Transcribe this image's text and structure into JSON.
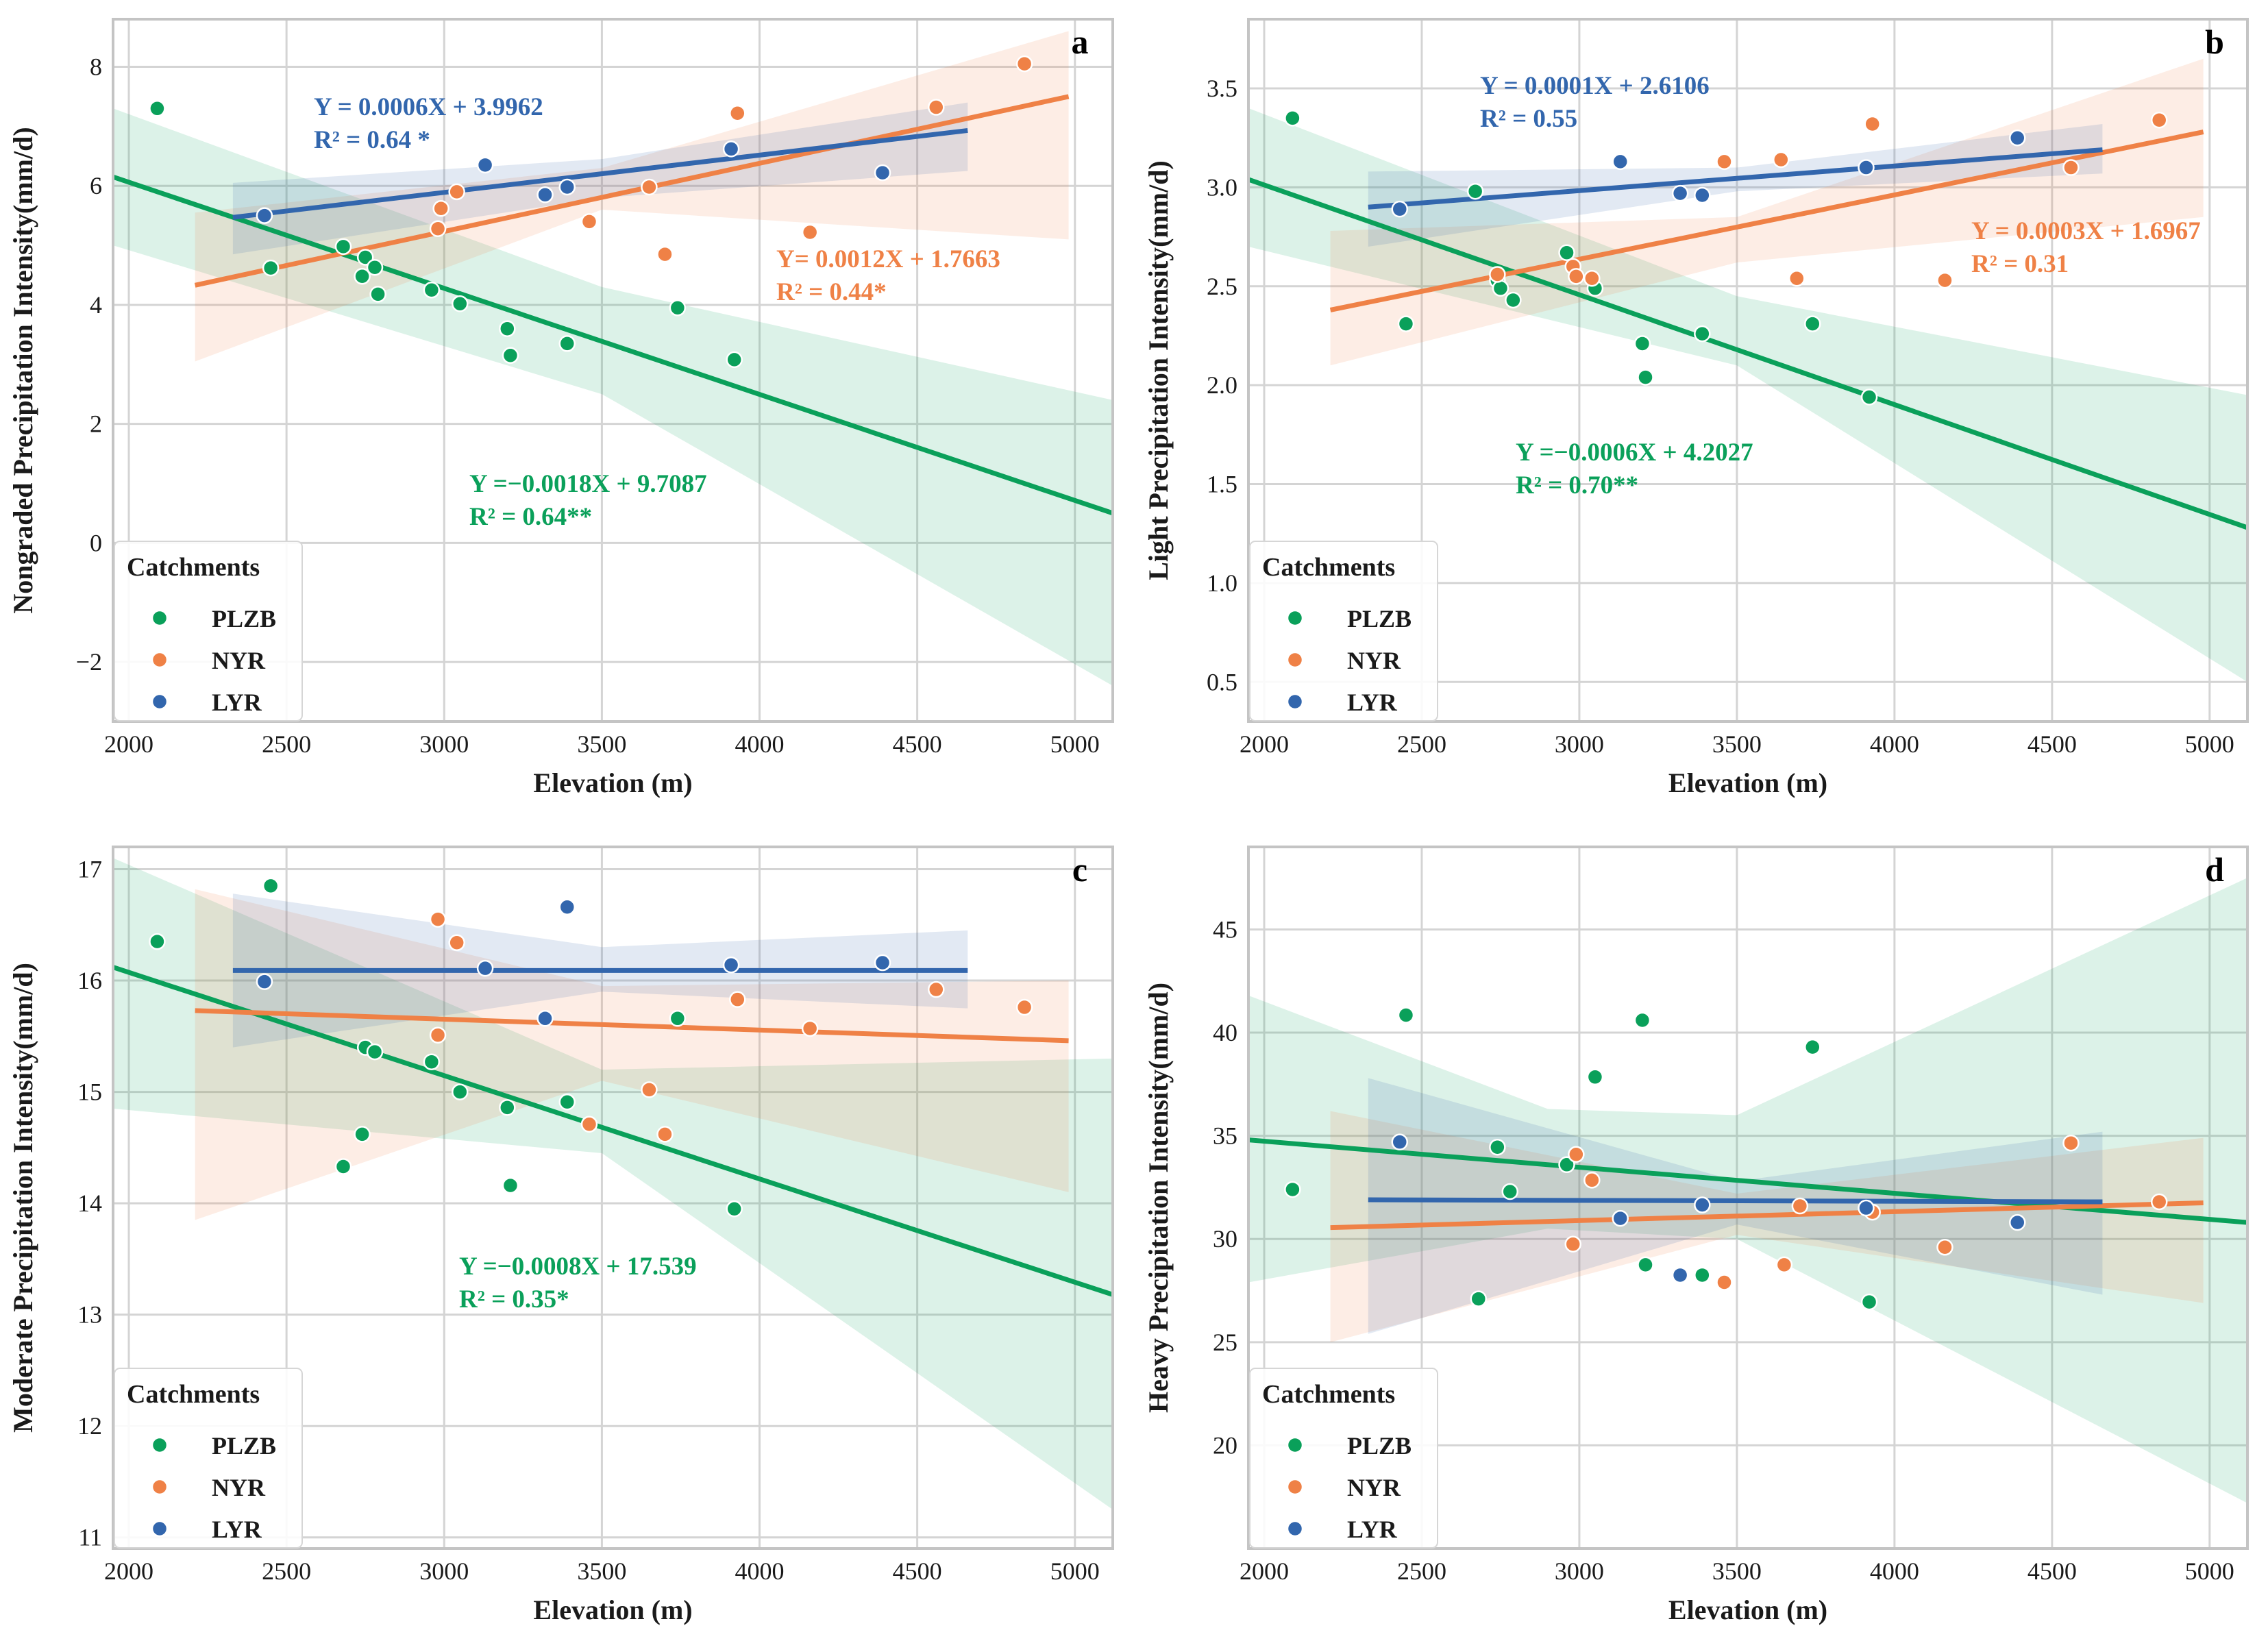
{
  "colors": {
    "PLZB": "#0aa05a",
    "NYR": "#ef8146",
    "LYR": "#3266ad",
    "grid": "#d4d4d4",
    "frame": "#c4c4c4"
  },
  "shared": {
    "xlabel": "Elevation (m)",
    "legend_title": "Catchments",
    "legend_entries": [
      "PLZB",
      "NYR",
      "LYR"
    ]
  },
  "chart_data": [
    {
      "type": "scatter",
      "panel": "a",
      "ylabel": "Nongraded Precipitation Intensity(mm/d)",
      "xlabel": "Elevation (m)",
      "xlim": [
        1950,
        5120
      ],
      "ylim": [
        -3,
        8.8
      ],
      "xticks": [
        2000,
        2500,
        3000,
        3500,
        4000,
        4500,
        5000
      ],
      "yticks": [
        -2,
        0,
        2,
        4,
        6,
        8
      ],
      "grid": true,
      "legend": "bottom-left",
      "series": [
        {
          "name": "PLZB",
          "points": [
            [
              2090,
              7.3
            ],
            [
              2450,
              4.62
            ],
            [
              2680,
              4.98
            ],
            [
              2740,
              4.48
            ],
            [
              2750,
              4.8
            ],
            [
              2780,
              4.63
            ],
            [
              2790,
              4.18
            ],
            [
              2960,
              4.25
            ],
            [
              3050,
              4.02
            ],
            [
              3200,
              3.6
            ],
            [
              3210,
              3.15
            ],
            [
              3390,
              3.35
            ],
            [
              3740,
              3.95
            ],
            [
              3920,
              3.08
            ]
          ],
          "fit": {
            "x0": 1950,
            "y0": 6.15,
            "x1": 5120,
            "y1": 0.5
          },
          "band": {
            "x": [
              1950,
              3500,
              5120
            ],
            "upper": [
              7.3,
              4.3,
              2.4
            ],
            "lower": [
              5.0,
              2.5,
              -2.4
            ]
          },
          "equation": "Y =−0.0018X + 9.7087",
          "r2": "R² = 0.64**"
        },
        {
          "name": "NYR",
          "points": [
            [
              2980,
              5.28
            ],
            [
              2990,
              5.62
            ],
            [
              3040,
              5.9
            ],
            [
              3460,
              5.4
            ],
            [
              3650,
              5.98
            ],
            [
              3700,
              4.85
            ],
            [
              3930,
              7.22
            ],
            [
              4160,
              5.22
            ],
            [
              4560,
              7.32
            ],
            [
              4840,
              8.05
            ]
          ],
          "fit": {
            "x0": 2210,
            "y0": 4.33,
            "x1": 4980,
            "y1": 7.5
          },
          "band": {
            "x": [
              2210,
              3500,
              4980
            ],
            "upper": [
              5.55,
              6.3,
              8.6
            ],
            "lower": [
              3.05,
              5.6,
              5.1
            ]
          },
          "equation": "Y= 0.0012X + 1.7663",
          "r2": "R² = 0.44*"
        },
        {
          "name": "LYR",
          "points": [
            [
              2430,
              5.5
            ],
            [
              3130,
              6.35
            ],
            [
              3320,
              5.85
            ],
            [
              3390,
              5.98
            ],
            [
              3910,
              6.62
            ],
            [
              4390,
              6.22
            ]
          ],
          "fit": {
            "x0": 2330,
            "y0": 5.47,
            "x1": 4660,
            "y1": 6.93
          },
          "band": {
            "x": [
              2330,
              3500,
              4660
            ],
            "upper": [
              6.05,
              6.45,
              7.4
            ],
            "lower": [
              4.85,
              5.8,
              6.25
            ]
          },
          "equation": "Y = 0.0006X + 3.9962",
          "r2": "R² = 0.64 *"
        }
      ]
    },
    {
      "type": "scatter",
      "panel": "b",
      "ylabel": "Light Precipitation Intensity(mm/d)",
      "xlabel": "Elevation (m)",
      "xlim": [
        1950,
        5120
      ],
      "ylim": [
        0.3,
        3.85
      ],
      "xticks": [
        2000,
        2500,
        3000,
        3500,
        4000,
        4500,
        5000
      ],
      "yticks": [
        0.5,
        1.0,
        1.5,
        2.0,
        2.5,
        3.0,
        3.5
      ],
      "grid": true,
      "legend": "bottom-left",
      "series": [
        {
          "name": "PLZB",
          "points": [
            [
              2090,
              3.35
            ],
            [
              2450,
              2.31
            ],
            [
              2670,
              2.98
            ],
            [
              2740,
              2.53
            ],
            [
              2750,
              2.49
            ],
            [
              2790,
              2.43
            ],
            [
              2960,
              2.67
            ],
            [
              3050,
              2.49
            ],
            [
              3200,
              2.21
            ],
            [
              3210,
              2.04
            ],
            [
              3390,
              2.26
            ],
            [
              3740,
              2.31
            ],
            [
              3920,
              1.94
            ]
          ],
          "fit": {
            "x0": 1950,
            "y0": 3.04,
            "x1": 5120,
            "y1": 1.28
          },
          "band": {
            "x": [
              1950,
              3500,
              5120
            ],
            "upper": [
              3.4,
              2.45,
              1.95
            ],
            "lower": [
              2.7,
              2.1,
              0.5
            ]
          },
          "equation": "Y =−0.0006X + 4.2027",
          "r2": "R² = 0.70**"
        },
        {
          "name": "NYR",
          "points": [
            [
              2740,
              2.56
            ],
            [
              2980,
              2.6
            ],
            [
              2990,
              2.55
            ],
            [
              3040,
              2.54
            ],
            [
              3460,
              3.13
            ],
            [
              3640,
              3.14
            ],
            [
              3690,
              2.54
            ],
            [
              3930,
              3.32
            ],
            [
              4160,
              2.53
            ],
            [
              4560,
              3.1
            ],
            [
              4840,
              3.34
            ]
          ],
          "fit": {
            "x0": 2210,
            "y0": 2.38,
            "x1": 4980,
            "y1": 3.28
          },
          "band": {
            "x": [
              2210,
              3500,
              4980
            ],
            "upper": [
              2.78,
              2.85,
              3.65
            ],
            "lower": [
              2.1,
              2.62,
              2.85
            ]
          },
          "equation": "Y = 0.0003X + 1.6967",
          "r2": "R² = 0.31"
        },
        {
          "name": "LYR",
          "points": [
            [
              2430,
              2.89
            ],
            [
              3130,
              3.13
            ],
            [
              3320,
              2.97
            ],
            [
              3390,
              2.96
            ],
            [
              3910,
              3.1
            ],
            [
              4390,
              3.25
            ]
          ],
          "fit": {
            "x0": 2330,
            "y0": 2.9,
            "x1": 4660,
            "y1": 3.19
          },
          "band": {
            "x": [
              2330,
              3500,
              4660
            ],
            "upper": [
              3.08,
              3.1,
              3.32
            ],
            "lower": [
              2.7,
              2.98,
              3.07
            ]
          },
          "equation": "Y = 0.0001X + 2.6106",
          "r2": "R² = 0.55"
        }
      ]
    },
    {
      "type": "scatter",
      "panel": "c",
      "ylabel": "Moderate Precipitation Intensity(mm/d)",
      "xlabel": "Elevation (m)",
      "xlim": [
        1950,
        5120
      ],
      "ylim": [
        10.9,
        17.2
      ],
      "xticks": [
        2000,
        2500,
        3000,
        3500,
        4000,
        4500,
        5000
      ],
      "yticks": [
        11,
        12,
        13,
        14,
        15,
        16,
        17
      ],
      "grid": true,
      "legend": "bottom-left",
      "series": [
        {
          "name": "PLZB",
          "points": [
            [
              2090,
              16.35
            ],
            [
              2450,
              16.85
            ],
            [
              2680,
              14.33
            ],
            [
              2740,
              14.62
            ],
            [
              2750,
              15.4
            ],
            [
              2780,
              15.36
            ],
            [
              2960,
              15.27
            ],
            [
              3050,
              15.0
            ],
            [
              3200,
              14.86
            ],
            [
              3210,
              14.16
            ],
            [
              3390,
              14.91
            ],
            [
              3740,
              15.66
            ],
            [
              3920,
              13.95
            ]
          ],
          "fit": {
            "x0": 1950,
            "y0": 16.12,
            "x1": 5120,
            "y1": 13.18
          },
          "band": {
            "x": [
              1950,
              3500,
              5120
            ],
            "upper": [
              17.1,
              15.2,
              15.3
            ],
            "lower": [
              14.85,
              14.45,
              11.25
            ]
          },
          "equation": "Y =−0.0008X + 17.539",
          "r2": "R² = 0.35*"
        },
        {
          "name": "NYR",
          "points": [
            [
              2980,
              16.55
            ],
            [
              2980,
              15.51
            ],
            [
              3040,
              16.34
            ],
            [
              3460,
              14.71
            ],
            [
              3650,
              15.02
            ],
            [
              3700,
              14.62
            ],
            [
              3930,
              15.83
            ],
            [
              4160,
              15.57
            ],
            [
              4560,
              15.92
            ],
            [
              4840,
              15.76
            ]
          ],
          "fit": {
            "x0": 2210,
            "y0": 15.73,
            "x1": 4980,
            "y1": 15.46
          },
          "band": {
            "x": [
              2210,
              3500,
              4980
            ],
            "upper": [
              16.82,
              15.95,
              16.0
            ],
            "lower": [
              13.85,
              15.1,
              14.1
            ]
          },
          "equation": "",
          "r2": ""
        },
        {
          "name": "LYR",
          "points": [
            [
              2430,
              15.99
            ],
            [
              3130,
              16.11
            ],
            [
              3320,
              15.66
            ],
            [
              3390,
              16.66
            ],
            [
              3910,
              16.14
            ],
            [
              4390,
              16.16
            ]
          ],
          "fit": {
            "x0": 2330,
            "y0": 16.09,
            "x1": 4660,
            "y1": 16.09
          },
          "band": {
            "x": [
              2330,
              3500,
              4660
            ],
            "upper": [
              16.78,
              16.3,
              16.45
            ],
            "lower": [
              15.4,
              15.9,
              15.75
            ]
          },
          "equation": "",
          "r2": ""
        }
      ]
    },
    {
      "type": "scatter",
      "panel": "d",
      "ylabel": "Heavy Precipitation Intensity(mm/d)",
      "xlabel": "Elevation (m)",
      "xlim": [
        1950,
        5120
      ],
      "ylim": [
        15,
        49
      ],
      "xticks": [
        2000,
        2500,
        3000,
        3500,
        4000,
        4500,
        5000
      ],
      "yticks": [
        20,
        25,
        30,
        35,
        40,
        45
      ],
      "grid": true,
      "legend": "bottom-left",
      "series": [
        {
          "name": "PLZB",
          "points": [
            [
              2090,
              32.4
            ],
            [
              2450,
              40.85
            ],
            [
              2680,
              27.1
            ],
            [
              2740,
              34.45
            ],
            [
              2780,
              32.3
            ],
            [
              2960,
              33.6
            ],
            [
              3050,
              37.85
            ],
            [
              3200,
              40.6
            ],
            [
              3210,
              28.75
            ],
            [
              3390,
              28.25
            ],
            [
              3740,
              39.3
            ],
            [
              3920,
              26.95
            ]
          ],
          "fit": {
            "x0": 1950,
            "y0": 34.8,
            "x1": 5120,
            "y1": 30.8
          },
          "band": {
            "x": [
              1950,
              2900,
              3500,
              5120
            ],
            "upper": [
              41.8,
              36.3,
              36.0,
              47.5
            ],
            "lower": [
              27.9,
              30.5,
              30.0,
              17.2
            ]
          },
          "equation": "",
          "r2": ""
        },
        {
          "name": "NYR",
          "points": [
            [
              2980,
              29.75
            ],
            [
              2990,
              34.1
            ],
            [
              3040,
              32.85
            ],
            [
              3460,
              27.9
            ],
            [
              3650,
              28.75
            ],
            [
              3700,
              31.6
            ],
            [
              3930,
              31.3
            ],
            [
              4160,
              29.6
            ],
            [
              4560,
              34.65
            ],
            [
              4840,
              31.8
            ]
          ],
          "fit": {
            "x0": 2210,
            "y0": 30.55,
            "x1": 4980,
            "y1": 31.75
          },
          "band": {
            "x": [
              2210,
              3500,
              4980
            ],
            "upper": [
              36.2,
              32.2,
              34.9
            ],
            "lower": [
              25.0,
              30.2,
              26.9
            ]
          },
          "equation": "",
          "r2": ""
        },
        {
          "name": "LYR",
          "points": [
            [
              2430,
              34.7
            ],
            [
              3130,
              31.0
            ],
            [
              3320,
              28.25
            ],
            [
              3390,
              31.65
            ],
            [
              3910,
              31.5
            ],
            [
              4390,
              30.8
            ]
          ],
          "fit": {
            "x0": 2330,
            "y0": 31.9,
            "x1": 4660,
            "y1": 31.8
          },
          "band": {
            "x": [
              2330,
              3500,
              4660
            ],
            "upper": [
              37.8,
              32.8,
              35.2
            ],
            "lower": [
              25.4,
              30.7,
              27.3
            ]
          },
          "equation": "",
          "r2": ""
        }
      ]
    }
  ]
}
